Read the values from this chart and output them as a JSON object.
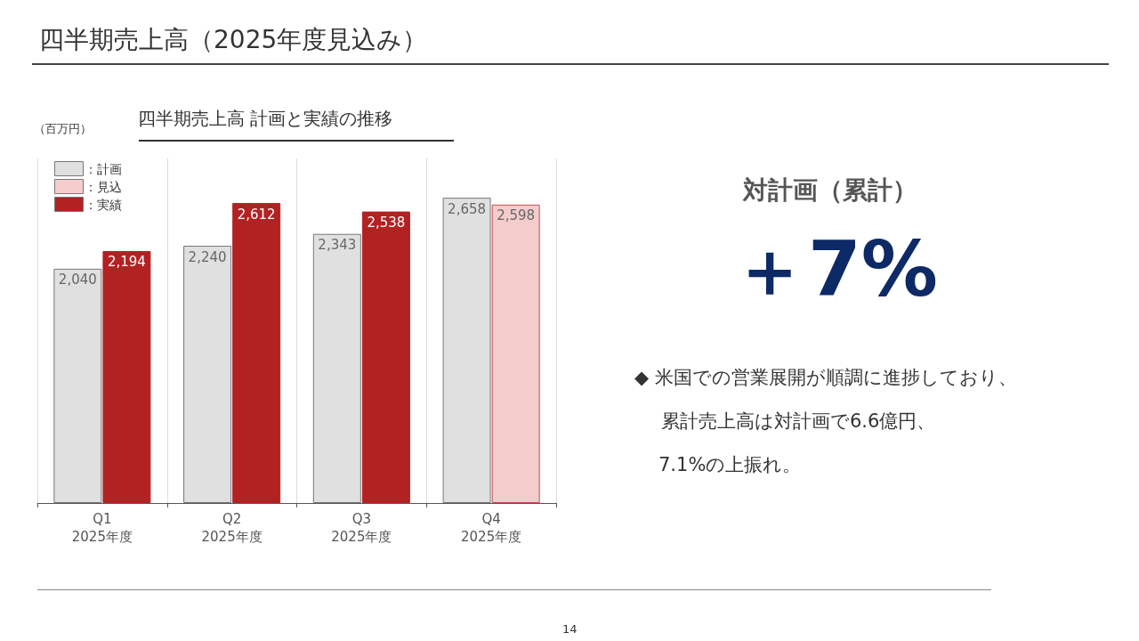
{
  "chart_data": {
    "type": "bar",
    "title": "四半期売上高（2025年度見込み）",
    "subtitle": "四半期売上高 計画と実績の推移",
    "categories": [
      "Q1\n2025年度",
      "Q2\n2025年度",
      "Q3\n2025年度",
      "Q4\n2025年度"
    ],
    "series": [
      {
        "name": "：計画",
        "color": "#e0e0e0",
        "values": [
          2040,
          2240,
          2343,
          2658
        ],
        "value_labels": [
          "2,040",
          "2,240",
          "2,343",
          "2,658"
        ]
      },
      {
        "name": "：見込",
        "color": "#f4cccc",
        "values": [
          null,
          null,
          null,
          2598
        ],
        "value_labels": [
          null,
          null,
          null,
          "2,598"
        ]
      },
      {
        "name": "：実績",
        "color": "#b22222",
        "values": [
          2194,
          2612,
          2538,
          null
        ],
        "value_labels": [
          "2,194",
          "2,612",
          "2,538",
          null
        ]
      }
    ],
    "grid": "x",
    "legend": "top left",
    "annotations": [
      "（百万円）",
      "対計画（累計）",
      "＋7%",
      "◆ 米国での営業展開が順調に進捗しており、",
      "累計売上高は対計画で6.6億円、",
      "7.1%の上振れ。",
      "14"
    ]
  }
}
